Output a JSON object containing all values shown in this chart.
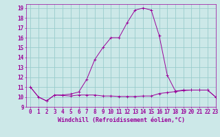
{
  "xlabel": "Windchill (Refroidissement éolien,°C)",
  "background_color": "#cce8e8",
  "grid_color": "#99cccc",
  "line_color": "#990099",
  "xlim": [
    -0.5,
    23
  ],
  "ylim": [
    9,
    19.4
  ],
  "xticks": [
    0,
    1,
    2,
    3,
    4,
    5,
    6,
    7,
    8,
    9,
    10,
    11,
    12,
    13,
    14,
    15,
    16,
    17,
    18,
    19,
    20,
    21,
    22,
    23
  ],
  "yticks": [
    9,
    10,
    11,
    12,
    13,
    14,
    15,
    16,
    17,
    18,
    19
  ],
  "curve1_x": [
    0,
    1,
    2,
    3,
    4,
    5,
    6,
    7,
    8,
    9,
    10,
    11,
    12,
    13,
    14,
    15,
    16,
    17,
    18,
    19,
    20,
    21,
    22,
    23
  ],
  "curve1_y": [
    11.0,
    10.0,
    9.6,
    10.2,
    10.15,
    10.1,
    10.2,
    10.2,
    10.2,
    10.1,
    10.1,
    10.05,
    10.05,
    10.05,
    10.1,
    10.1,
    10.35,
    10.45,
    10.55,
    10.65,
    10.7,
    10.7,
    10.7,
    10.0
  ],
  "curve2_x": [
    0,
    1,
    2,
    3,
    4,
    5,
    6,
    7,
    8,
    9,
    10,
    11,
    12,
    13,
    14,
    15,
    16,
    17,
    18,
    19,
    20,
    21,
    22,
    23
  ],
  "curve2_y": [
    11.0,
    10.0,
    9.6,
    10.2,
    10.2,
    10.3,
    10.5,
    11.8,
    13.8,
    15.0,
    16.0,
    16.0,
    17.5,
    18.8,
    19.0,
    18.8,
    16.2,
    12.2,
    10.6,
    10.7,
    10.7,
    10.7,
    10.7,
    10.0
  ],
  "tick_fontsize": 5.5,
  "xlabel_fontsize": 6.0
}
